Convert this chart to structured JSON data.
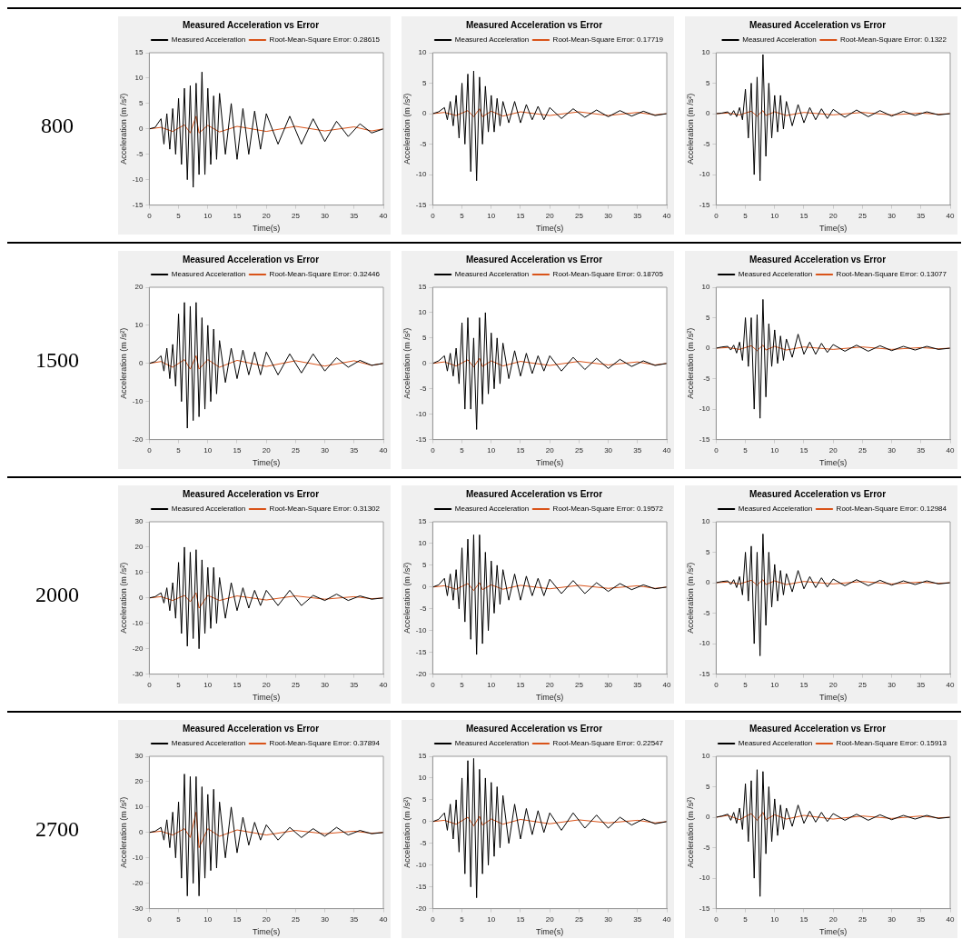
{
  "chart_data": [
    {
      "type": "line",
      "title": "Measured Acceleration vs Error",
      "xlabel": "Time(s)",
      "ylabel": "Acceleration (m /s²)",
      "annotations": [
        "800"
      ],
      "xlim": [
        0,
        40
      ],
      "xticks": [
        0,
        5,
        10,
        15,
        20,
        25,
        30,
        35,
        40
      ],
      "ylim": [
        -15,
        15
      ],
      "yticks": [
        -15,
        -10,
        -5,
        0,
        5,
        10,
        15
      ],
      "legend": "top right",
      "marker": "none",
      "series": [
        {
          "name": "Measured Acceleration",
          "color": "#000000",
          "x": [
            0,
            1,
            2,
            2.5,
            3,
            3.5,
            4,
            4.5,
            5,
            5.5,
            6,
            6.5,
            7,
            7.5,
            8,
            8.5,
            9,
            9.5,
            10,
            10.5,
            11,
            11.5,
            12,
            13,
            14,
            15,
            16,
            17,
            18,
            19,
            20,
            22,
            24,
            26,
            28,
            30,
            32,
            34,
            36,
            38,
            40
          ],
          "values": [
            0,
            0.3,
            2,
            -3,
            3,
            -4,
            4,
            -5,
            6,
            -7,
            8,
            -10,
            8.5,
            -11.5,
            9,
            -9,
            11.2,
            -9,
            8,
            -7,
            6.5,
            -6,
            7,
            -5,
            5,
            -6,
            4,
            -5,
            3.5,
            -4,
            3,
            -3,
            2.5,
            -3,
            2,
            -2.5,
            1.5,
            -1.5,
            1,
            -0.8,
            0
          ]
        },
        {
          "name": "Root-Mean-Square Error: 0.28615",
          "color": "#d95319",
          "x": [
            0,
            2,
            4,
            6,
            7,
            8,
            8.5,
            10,
            12,
            15,
            20,
            25,
            30,
            35,
            38,
            40
          ],
          "values": [
            0,
            0.3,
            -0.5,
            0.8,
            -0.8,
            2.5,
            -0.8,
            0.7,
            -0.6,
            0.5,
            -0.5,
            0.5,
            -0.4,
            0.4,
            -0.4,
            0
          ]
        }
      ]
    },
    {
      "type": "line",
      "title": "Measured Acceleration vs Error",
      "xlabel": "Time(s)",
      "ylabel": "Acceleration (m /s²)",
      "xlim": [
        0,
        40
      ],
      "xticks": [
        0,
        5,
        10,
        15,
        20,
        25,
        30,
        35,
        40
      ],
      "ylim": [
        -15,
        10
      ],
      "yticks": [
        -15,
        -10,
        -5,
        0,
        5,
        10
      ],
      "legend": "top right",
      "marker": "none",
      "series": [
        {
          "name": "Measured Acceleration",
          "color": "#000000",
          "x": [
            0,
            1,
            2,
            2.5,
            3,
            3.5,
            4,
            4.5,
            5,
            5.5,
            6,
            6.5,
            7,
            7.5,
            8,
            8.5,
            9,
            9.5,
            10,
            10.5,
            11,
            11.5,
            12,
            13,
            14,
            15,
            16,
            17,
            18,
            19,
            20,
            22,
            24,
            26,
            28,
            30,
            32,
            34,
            36,
            38,
            40
          ],
          "values": [
            0,
            0.3,
            1,
            -1,
            2,
            -2,
            3,
            -4,
            5,
            -5,
            6.5,
            -9.5,
            7,
            -11,
            6,
            -5,
            4.5,
            -3,
            3,
            -3,
            2.5,
            -2,
            2,
            -1.5,
            2,
            -1.5,
            1.5,
            -1,
            1.2,
            -1,
            1,
            -0.8,
            0.8,
            -0.6,
            0.6,
            -0.5,
            0.5,
            -0.4,
            0.4,
            -0.3,
            0
          ]
        },
        {
          "name": "Root-Mean-Square Error: 0.17719",
          "color": "#d95319",
          "x": [
            0,
            2,
            4,
            6,
            7,
            8,
            8.5,
            10,
            12,
            15,
            20,
            25,
            30,
            35,
            38,
            40
          ],
          "values": [
            0,
            0.2,
            -0.3,
            0.5,
            -0.5,
            0.8,
            -0.5,
            0.4,
            -0.4,
            0.3,
            -0.3,
            0.3,
            -0.3,
            0.2,
            -0.2,
            0
          ]
        }
      ]
    },
    {
      "type": "line",
      "title": "Measured Acceleration vs Error",
      "xlabel": "Time(s)",
      "ylabel": "Acceleration (m /s²)",
      "xlim": [
        0,
        40
      ],
      "xticks": [
        0,
        5,
        10,
        15,
        20,
        25,
        30,
        35,
        40
      ],
      "ylim": [
        -15,
        10
      ],
      "yticks": [
        -15,
        -10,
        -5,
        0,
        5,
        10
      ],
      "legend": "top right",
      "marker": "none",
      "series": [
        {
          "name": "Measured Acceleration",
          "color": "#000000",
          "x": [
            0,
            1,
            2,
            2.5,
            3,
            3.5,
            4,
            4.5,
            5,
            5.5,
            6,
            6.5,
            7,
            7.5,
            8,
            8.5,
            9,
            9.5,
            10,
            10.5,
            11,
            11.5,
            12,
            13,
            14,
            15,
            16,
            17,
            18,
            19,
            20,
            22,
            24,
            26,
            28,
            30,
            32,
            34,
            36,
            38,
            40
          ],
          "values": [
            0,
            0.1,
            0.3,
            -0.3,
            0.5,
            -0.5,
            1,
            -1,
            4,
            -4,
            5,
            -10,
            6,
            -11,
            9.7,
            -7,
            5,
            -4,
            3,
            -3,
            3,
            -2.5,
            2,
            -2,
            1.5,
            -1.5,
            1,
            -1,
            0.8,
            -0.8,
            0.7,
            -0.6,
            0.6,
            -0.5,
            0.5,
            -0.4,
            0.4,
            -0.3,
            0.3,
            -0.2,
            0
          ]
        },
        {
          "name": "Root-Mean-Square Error: 0.1322",
          "color": "#d95319",
          "x": [
            0,
            2,
            4,
            6,
            7,
            8,
            8.5,
            10,
            12,
            15,
            20,
            25,
            30,
            35,
            38,
            40
          ],
          "values": [
            0,
            0.1,
            -0.2,
            0.4,
            -0.4,
            0.5,
            -0.3,
            0.3,
            -0.3,
            0.2,
            -0.2,
            0.2,
            -0.2,
            0.1,
            -0.1,
            0
          ]
        }
      ]
    },
    {
      "type": "line",
      "title": "Measured Acceleration vs Error",
      "xlabel": "Time(s)",
      "ylabel": "Acceleration (m /s²)",
      "annotations": [
        "1500"
      ],
      "xlim": [
        0,
        40
      ],
      "xticks": [
        0,
        5,
        10,
        15,
        20,
        25,
        30,
        35,
        40
      ],
      "ylim": [
        -20,
        20
      ],
      "yticks": [
        -20,
        -10,
        0,
        10,
        20
      ],
      "legend": "top right",
      "marker": "none",
      "series": [
        {
          "name": "Measured Acceleration",
          "color": "#000000",
          "x": [
            0,
            1,
            2,
            2.5,
            3,
            3.5,
            4,
            4.5,
            5,
            5.5,
            6,
            6.5,
            7,
            7.5,
            8,
            8.5,
            9,
            9.5,
            10,
            10.5,
            11,
            11.5,
            12,
            13,
            14,
            15,
            16,
            17,
            18,
            19,
            20,
            22,
            24,
            26,
            28,
            30,
            32,
            34,
            36,
            38,
            40
          ],
          "values": [
            0,
            0.5,
            2,
            -2,
            4,
            -4,
            5,
            -6,
            13,
            -10,
            16,
            -17,
            15,
            -15,
            16,
            -14,
            12,
            -12,
            10,
            -10,
            9,
            -8,
            6,
            -5,
            4,
            -4,
            3.5,
            -3,
            3,
            -3,
            3,
            -3,
            2.5,
            -2.5,
            2.5,
            -2,
            1.5,
            -1,
            0.8,
            -0.5,
            0
          ]
        },
        {
          "name": "Root-Mean-Square Error: 0.32446",
          "color": "#d95319",
          "x": [
            0,
            2,
            4,
            6,
            7,
            8,
            8.5,
            10,
            12,
            15,
            20,
            25,
            30,
            35,
            38,
            40
          ],
          "values": [
            0,
            0.5,
            -1,
            1,
            -1.5,
            2,
            -1.5,
            1,
            -1,
            0.8,
            -0.8,
            0.7,
            -0.7,
            0.7,
            -0.5,
            0
          ]
        }
      ]
    },
    {
      "type": "line",
      "title": "Measured Acceleration vs Error",
      "xlabel": "Time(s)",
      "ylabel": "Acceleration (m /s²)",
      "xlim": [
        0,
        40
      ],
      "xticks": [
        0,
        5,
        10,
        15,
        20,
        25,
        30,
        35,
        40
      ],
      "ylim": [
        -15,
        15
      ],
      "yticks": [
        -15,
        -10,
        -5,
        0,
        5,
        10,
        15
      ],
      "legend": "top right",
      "marker": "none",
      "series": [
        {
          "name": "Measured Acceleration",
          "color": "#000000",
          "x": [
            0,
            1,
            2,
            2.5,
            3,
            3.5,
            4,
            4.5,
            5,
            5.5,
            6,
            6.5,
            7,
            7.5,
            8,
            8.5,
            9,
            9.5,
            10,
            10.5,
            11,
            11.5,
            12,
            13,
            14,
            15,
            16,
            17,
            18,
            19,
            20,
            22,
            24,
            26,
            28,
            30,
            32,
            34,
            36,
            38,
            40
          ],
          "values": [
            0,
            0.5,
            1.5,
            -1.5,
            2,
            -2.5,
            3,
            -4,
            8,
            -9,
            9,
            -9,
            5,
            -13,
            9,
            -8,
            10,
            -6,
            6,
            -5,
            5,
            -4,
            4,
            -3,
            2.5,
            -2.5,
            2,
            -2,
            1.5,
            -1.5,
            1.5,
            -1.5,
            1.2,
            -1.2,
            1,
            -1,
            0.8,
            -0.6,
            0.5,
            -0.4,
            0
          ]
        },
        {
          "name": "Root-Mean-Square Error: 0.18705",
          "color": "#d95319",
          "x": [
            0,
            2,
            4,
            6,
            7,
            8,
            8.5,
            10,
            12,
            15,
            20,
            25,
            30,
            35,
            38,
            40
          ],
          "values": [
            0,
            0.3,
            -0.5,
            0.7,
            -0.7,
            1,
            -0.6,
            0.5,
            -0.5,
            0.4,
            -0.4,
            0.4,
            -0.3,
            0.3,
            -0.3,
            0
          ]
        }
      ]
    },
    {
      "type": "line",
      "title": "Measured Acceleration vs Error",
      "xlabel": "Time(s)",
      "ylabel": "Acceleration (m /s²)",
      "xlim": [
        0,
        40
      ],
      "xticks": [
        0,
        5,
        10,
        15,
        20,
        25,
        30,
        35,
        40
      ],
      "ylim": [
        -15,
        10
      ],
      "yticks": [
        -15,
        -10,
        -5,
        0,
        5,
        10
      ],
      "legend": "top right",
      "marker": "none",
      "series": [
        {
          "name": "Measured Acceleration",
          "color": "#000000",
          "x": [
            0,
            1,
            2,
            2.5,
            3,
            3.5,
            4,
            4.5,
            5,
            5.5,
            6,
            6.5,
            7,
            7.5,
            8,
            8.5,
            9,
            9.5,
            10,
            10.5,
            11,
            11.5,
            12,
            13,
            14,
            15,
            16,
            17,
            18,
            19,
            20,
            22,
            24,
            26,
            28,
            30,
            32,
            34,
            36,
            38,
            40
          ],
          "values": [
            0,
            0.2,
            0.3,
            -0.3,
            0.5,
            -0.8,
            1,
            -2,
            5,
            -3,
            5,
            -10,
            5.5,
            -11.5,
            8,
            -8,
            4,
            -3,
            3,
            -2.5,
            2,
            -2,
            1.5,
            -1.5,
            2.3,
            -1,
            1,
            -1,
            0.8,
            -0.7,
            0.6,
            -0.5,
            0.5,
            -0.5,
            0.4,
            -0.4,
            0.3,
            -0.3,
            0.3,
            -0.2,
            0
          ]
        },
        {
          "name": "Root-Mean-Square Error: 0.13077",
          "color": "#d95319",
          "x": [
            0,
            2,
            4,
            6,
            7,
            8,
            8.5,
            10,
            12,
            15,
            20,
            25,
            30,
            35,
            38,
            40
          ],
          "values": [
            0,
            0.1,
            -0.2,
            0.4,
            -0.4,
            0.5,
            -0.3,
            0.3,
            -0.3,
            0.2,
            -0.2,
            0.2,
            -0.2,
            0.1,
            -0.1,
            0
          ]
        }
      ]
    },
    {
      "type": "line",
      "title": "Measured Acceleration vs Error",
      "xlabel": "Time(s)",
      "ylabel": "Acceleration (m /s²)",
      "annotations": [
        "2000"
      ],
      "xlim": [
        0,
        40
      ],
      "xticks": [
        0,
        5,
        10,
        15,
        20,
        25,
        30,
        35,
        40
      ],
      "ylim": [
        -30,
        30
      ],
      "yticks": [
        -30,
        -20,
        -10,
        0,
        10,
        20,
        30
      ],
      "legend": "top right",
      "marker": "none",
      "series": [
        {
          "name": "Measured Acceleration",
          "color": "#000000",
          "x": [
            0,
            1,
            2,
            2.5,
            3,
            3.5,
            4,
            4.5,
            5,
            5.5,
            6,
            6.5,
            7,
            7.5,
            8,
            8.5,
            9,
            9.5,
            10,
            10.5,
            11,
            11.5,
            12,
            13,
            14,
            15,
            16,
            17,
            18,
            19,
            20,
            22,
            24,
            26,
            28,
            30,
            32,
            34,
            36,
            38,
            40
          ],
          "values": [
            0,
            0.5,
            2,
            -2,
            4,
            -5,
            6,
            -8,
            14,
            -14,
            20,
            -19,
            18,
            -16,
            19,
            -20,
            15,
            -14,
            12,
            -12,
            12,
            -10,
            8,
            -8,
            6,
            -5,
            4,
            -4,
            3,
            -3,
            3,
            -3,
            3,
            -3,
            1,
            -1,
            1.5,
            -1,
            0.8,
            -0.5,
            0
          ]
        },
        {
          "name": "Root-Mean-Square Error: 0.31302",
          "color": "#d95319",
          "x": [
            0,
            2,
            4,
            6,
            7,
            8,
            8.5,
            10,
            12,
            15,
            20,
            25,
            30,
            35,
            38,
            40
          ],
          "values": [
            0,
            0.5,
            -1,
            1,
            -1.5,
            2,
            -4,
            1,
            -1,
            0.8,
            -0.8,
            0.8,
            -0.5,
            0.5,
            -0.3,
            0
          ]
        }
      ]
    },
    {
      "type": "line",
      "title": "Measured Acceleration vs Error",
      "xlabel": "Time(s)",
      "ylabel": "Acceleration (m /s²)",
      "xlim": [
        0,
        40
      ],
      "xticks": [
        0,
        5,
        10,
        15,
        20,
        25,
        30,
        35,
        40
      ],
      "ylim": [
        -20,
        15
      ],
      "yticks": [
        -20,
        -15,
        -10,
        -5,
        0,
        5,
        10,
        15
      ],
      "legend": "top right",
      "marker": "none",
      "series": [
        {
          "name": "Measured Acceleration",
          "color": "#000000",
          "x": [
            0,
            1,
            2,
            2.5,
            3,
            3.5,
            4,
            4.5,
            5,
            5.5,
            6,
            6.5,
            7,
            7.5,
            8,
            8.5,
            9,
            9.5,
            10,
            10.5,
            11,
            11.5,
            12,
            13,
            14,
            15,
            16,
            17,
            18,
            19,
            20,
            22,
            24,
            26,
            28,
            30,
            32,
            34,
            36,
            38,
            40
          ],
          "values": [
            0,
            0.5,
            2,
            -2,
            3,
            -3,
            4,
            -5,
            9,
            -8,
            11,
            -12,
            12,
            -15.5,
            12,
            -13,
            8,
            -10,
            6,
            -6,
            5,
            -4,
            4,
            -3,
            3,
            -3,
            2.5,
            -2,
            2,
            -2,
            1.8,
            -1.5,
            1.5,
            -1.5,
            1,
            -1,
            0.8,
            -0.6,
            0.5,
            -0.4,
            0
          ]
        },
        {
          "name": "Root-Mean-Square Error: 0.19572",
          "color": "#d95319",
          "x": [
            0,
            2,
            4,
            6,
            7,
            8,
            8.5,
            10,
            12,
            15,
            20,
            25,
            30,
            35,
            38,
            40
          ],
          "values": [
            0,
            0.3,
            -0.5,
            0.8,
            -0.8,
            1,
            -0.6,
            0.5,
            -0.5,
            0.4,
            -0.4,
            0.4,
            -0.3,
            0.3,
            -0.3,
            0
          ]
        }
      ]
    },
    {
      "type": "line",
      "title": "Measured Acceleration vs Error",
      "xlabel": "Time(s)",
      "ylabel": "Acceleration (m /s²)",
      "xlim": [
        0,
        40
      ],
      "xticks": [
        0,
        5,
        10,
        15,
        20,
        25,
        30,
        35,
        40
      ],
      "ylim": [
        -15,
        10
      ],
      "yticks": [
        -15,
        -10,
        -5,
        0,
        5,
        10
      ],
      "legend": "top right",
      "marker": "none",
      "series": [
        {
          "name": "Measured Acceleration",
          "color": "#000000",
          "x": [
            0,
            1,
            2,
            2.5,
            3,
            3.5,
            4,
            4.5,
            5,
            5.5,
            6,
            6.5,
            7,
            7.5,
            8,
            8.5,
            9,
            9.5,
            10,
            10.5,
            11,
            11.5,
            12,
            13,
            14,
            15,
            16,
            17,
            18,
            19,
            20,
            22,
            24,
            26,
            28,
            30,
            32,
            34,
            36,
            38,
            40
          ],
          "values": [
            0,
            0.2,
            0.3,
            -0.3,
            0.5,
            -0.8,
            1,
            -2,
            5,
            -3,
            6,
            -10,
            5,
            -12,
            8,
            -7,
            5,
            -4,
            3,
            -3,
            2,
            -2,
            1.5,
            -1.5,
            2,
            -1,
            1,
            -0.8,
            0.8,
            -0.7,
            0.6,
            -0.5,
            0.5,
            -0.5,
            0.4,
            -0.4,
            0.3,
            -0.3,
            0.3,
            -0.2,
            0
          ]
        },
        {
          "name": "Root-Mean-Square Error: 0.12984",
          "color": "#d95319",
          "x": [
            0,
            2,
            4,
            6,
            7,
            8,
            8.5,
            10,
            12,
            15,
            20,
            25,
            30,
            35,
            38,
            40
          ],
          "values": [
            0,
            0.1,
            -0.2,
            0.4,
            -0.4,
            0.5,
            -0.3,
            0.3,
            -0.3,
            0.2,
            -0.2,
            0.2,
            -0.2,
            0.1,
            -0.1,
            0
          ]
        }
      ]
    },
    {
      "type": "line",
      "title": "Measured Acceleration vs Error",
      "xlabel": "Time(s)",
      "ylabel": "Acceleration (m /s²)",
      "annotations": [
        "2700"
      ],
      "xlim": [
        0,
        40
      ],
      "xticks": [
        0,
        5,
        10,
        15,
        20,
        25,
        30,
        35,
        40
      ],
      "ylim": [
        -30,
        30
      ],
      "yticks": [
        -30,
        -20,
        -10,
        0,
        10,
        20,
        30
      ],
      "legend": "top right",
      "marker": "none",
      "series": [
        {
          "name": "Measured Acceleration",
          "color": "#000000",
          "x": [
            0,
            1,
            2,
            2.5,
            3,
            3.5,
            4,
            4.5,
            5,
            5.5,
            6,
            6.5,
            7,
            7.5,
            8,
            8.5,
            9,
            9.5,
            10,
            10.5,
            11,
            11.5,
            12,
            13,
            14,
            15,
            16,
            17,
            18,
            19,
            20,
            22,
            24,
            26,
            28,
            30,
            32,
            34,
            36,
            38,
            40
          ],
          "values": [
            0,
            0.5,
            2,
            -3,
            5,
            -6,
            8,
            -10,
            12,
            -18,
            23,
            -25,
            22,
            -20,
            22,
            -25,
            18,
            -18,
            15,
            -15,
            17,
            -14,
            12,
            -10,
            10,
            -8,
            6,
            -5,
            4,
            -3,
            3,
            -3,
            2,
            -2,
            1.5,
            -1.5,
            2,
            -1,
            0.8,
            -0.5,
            0
          ]
        },
        {
          "name": "Root-Mean-Square Error: 0.37894",
          "color": "#d95319",
          "x": [
            0,
            2,
            4,
            6,
            7,
            8,
            8.5,
            10,
            12,
            15,
            20,
            25,
            30,
            35,
            38,
            40
          ],
          "values": [
            0,
            0.5,
            -1,
            1.5,
            -2,
            8,
            -6,
            1.5,
            -1.5,
            1,
            -1,
            0.8,
            -0.5,
            0.5,
            -0.3,
            0
          ]
        }
      ]
    },
    {
      "type": "line",
      "title": "Measured Acceleration vs Error",
      "xlabel": "Time(s)",
      "ylabel": "Acceleration (m /s²)",
      "xlim": [
        0,
        40
      ],
      "xticks": [
        0,
        5,
        10,
        15,
        20,
        25,
        30,
        35,
        40
      ],
      "ylim": [
        -20,
        15
      ],
      "yticks": [
        -20,
        -15,
        -10,
        -5,
        0,
        5,
        10,
        15
      ],
      "legend": "top right",
      "marker": "none",
      "series": [
        {
          "name": "Measured Acceleration",
          "color": "#000000",
          "x": [
            0,
            1,
            2,
            2.5,
            3,
            3.5,
            4,
            4.5,
            5,
            5.5,
            6,
            6.5,
            7,
            7.5,
            8,
            8.5,
            9,
            9.5,
            10,
            10.5,
            11,
            11.5,
            12,
            13,
            14,
            15,
            16,
            17,
            18,
            19,
            20,
            22,
            24,
            26,
            28,
            30,
            32,
            34,
            36,
            38,
            40
          ],
          "values": [
            0,
            0.5,
            2,
            -2,
            4,
            -4,
            5,
            -7,
            10,
            -12,
            14,
            -15,
            14.5,
            -17.5,
            12,
            -12,
            10,
            -10,
            9,
            -8,
            8,
            -6,
            6,
            -5,
            4,
            -4,
            3,
            -3,
            2.5,
            -2.5,
            2,
            -2,
            2,
            -1.5,
            1.5,
            -1.5,
            1,
            -0.8,
            0.6,
            -0.5,
            0
          ]
        },
        {
          "name": "Root-Mean-Square Error: 0.22547",
          "color": "#d95319",
          "x": [
            0,
            2,
            4,
            6,
            7,
            8,
            8.5,
            10,
            12,
            15,
            20,
            25,
            30,
            35,
            38,
            40
          ],
          "values": [
            0,
            0.3,
            -0.6,
            1,
            -1,
            1.2,
            -0.8,
            0.6,
            -0.6,
            0.5,
            -0.5,
            0.4,
            -0.3,
            0.3,
            -0.3,
            0
          ]
        }
      ]
    },
    {
      "type": "line",
      "title": "Measured Acceleration vs Error",
      "xlabel": "Time(s)",
      "ylabel": "Acceleration (m /s²)",
      "xlim": [
        0,
        40
      ],
      "xticks": [
        0,
        5,
        10,
        15,
        20,
        25,
        30,
        35,
        40
      ],
      "ylim": [
        -15,
        10
      ],
      "yticks": [
        -15,
        -10,
        -5,
        0,
        5,
        10
      ],
      "legend": "top right",
      "marker": "none",
      "series": [
        {
          "name": "Measured Acceleration",
          "color": "#000000",
          "x": [
            0,
            1,
            2,
            2.5,
            3,
            3.5,
            4,
            4.5,
            5,
            5.5,
            6,
            6.5,
            7,
            7.5,
            8,
            8.5,
            9,
            9.5,
            10,
            10.5,
            11,
            11.5,
            12,
            13,
            14,
            15,
            16,
            17,
            18,
            19,
            20,
            22,
            24,
            26,
            28,
            30,
            32,
            34,
            36,
            38,
            40
          ],
          "values": [
            0,
            0.2,
            0.5,
            -0.5,
            0.8,
            -1,
            1.5,
            -2,
            5.5,
            -4,
            6,
            -10,
            7.8,
            -13,
            7.5,
            -6,
            5,
            -4,
            3,
            -3,
            2,
            -2,
            1.5,
            -1.5,
            2,
            -1,
            1,
            -0.8,
            0.8,
            -0.7,
            0.6,
            -0.5,
            0.5,
            -0.5,
            0.4,
            -0.4,
            0.3,
            -0.3,
            0.3,
            -0.2,
            0
          ]
        },
        {
          "name": "Root-Mean-Square Error: 0.15913",
          "color": "#d95319",
          "x": [
            0,
            2,
            4,
            6,
            7,
            8,
            8.5,
            10,
            12,
            15,
            20,
            25,
            30,
            35,
            38,
            40
          ],
          "values": [
            0,
            0.3,
            -0.4,
            0.6,
            -0.5,
            0.8,
            -0.4,
            0.4,
            -0.3,
            0.3,
            -0.3,
            0.2,
            -0.2,
            0.2,
            -0.1,
            0
          ]
        }
      ]
    }
  ]
}
